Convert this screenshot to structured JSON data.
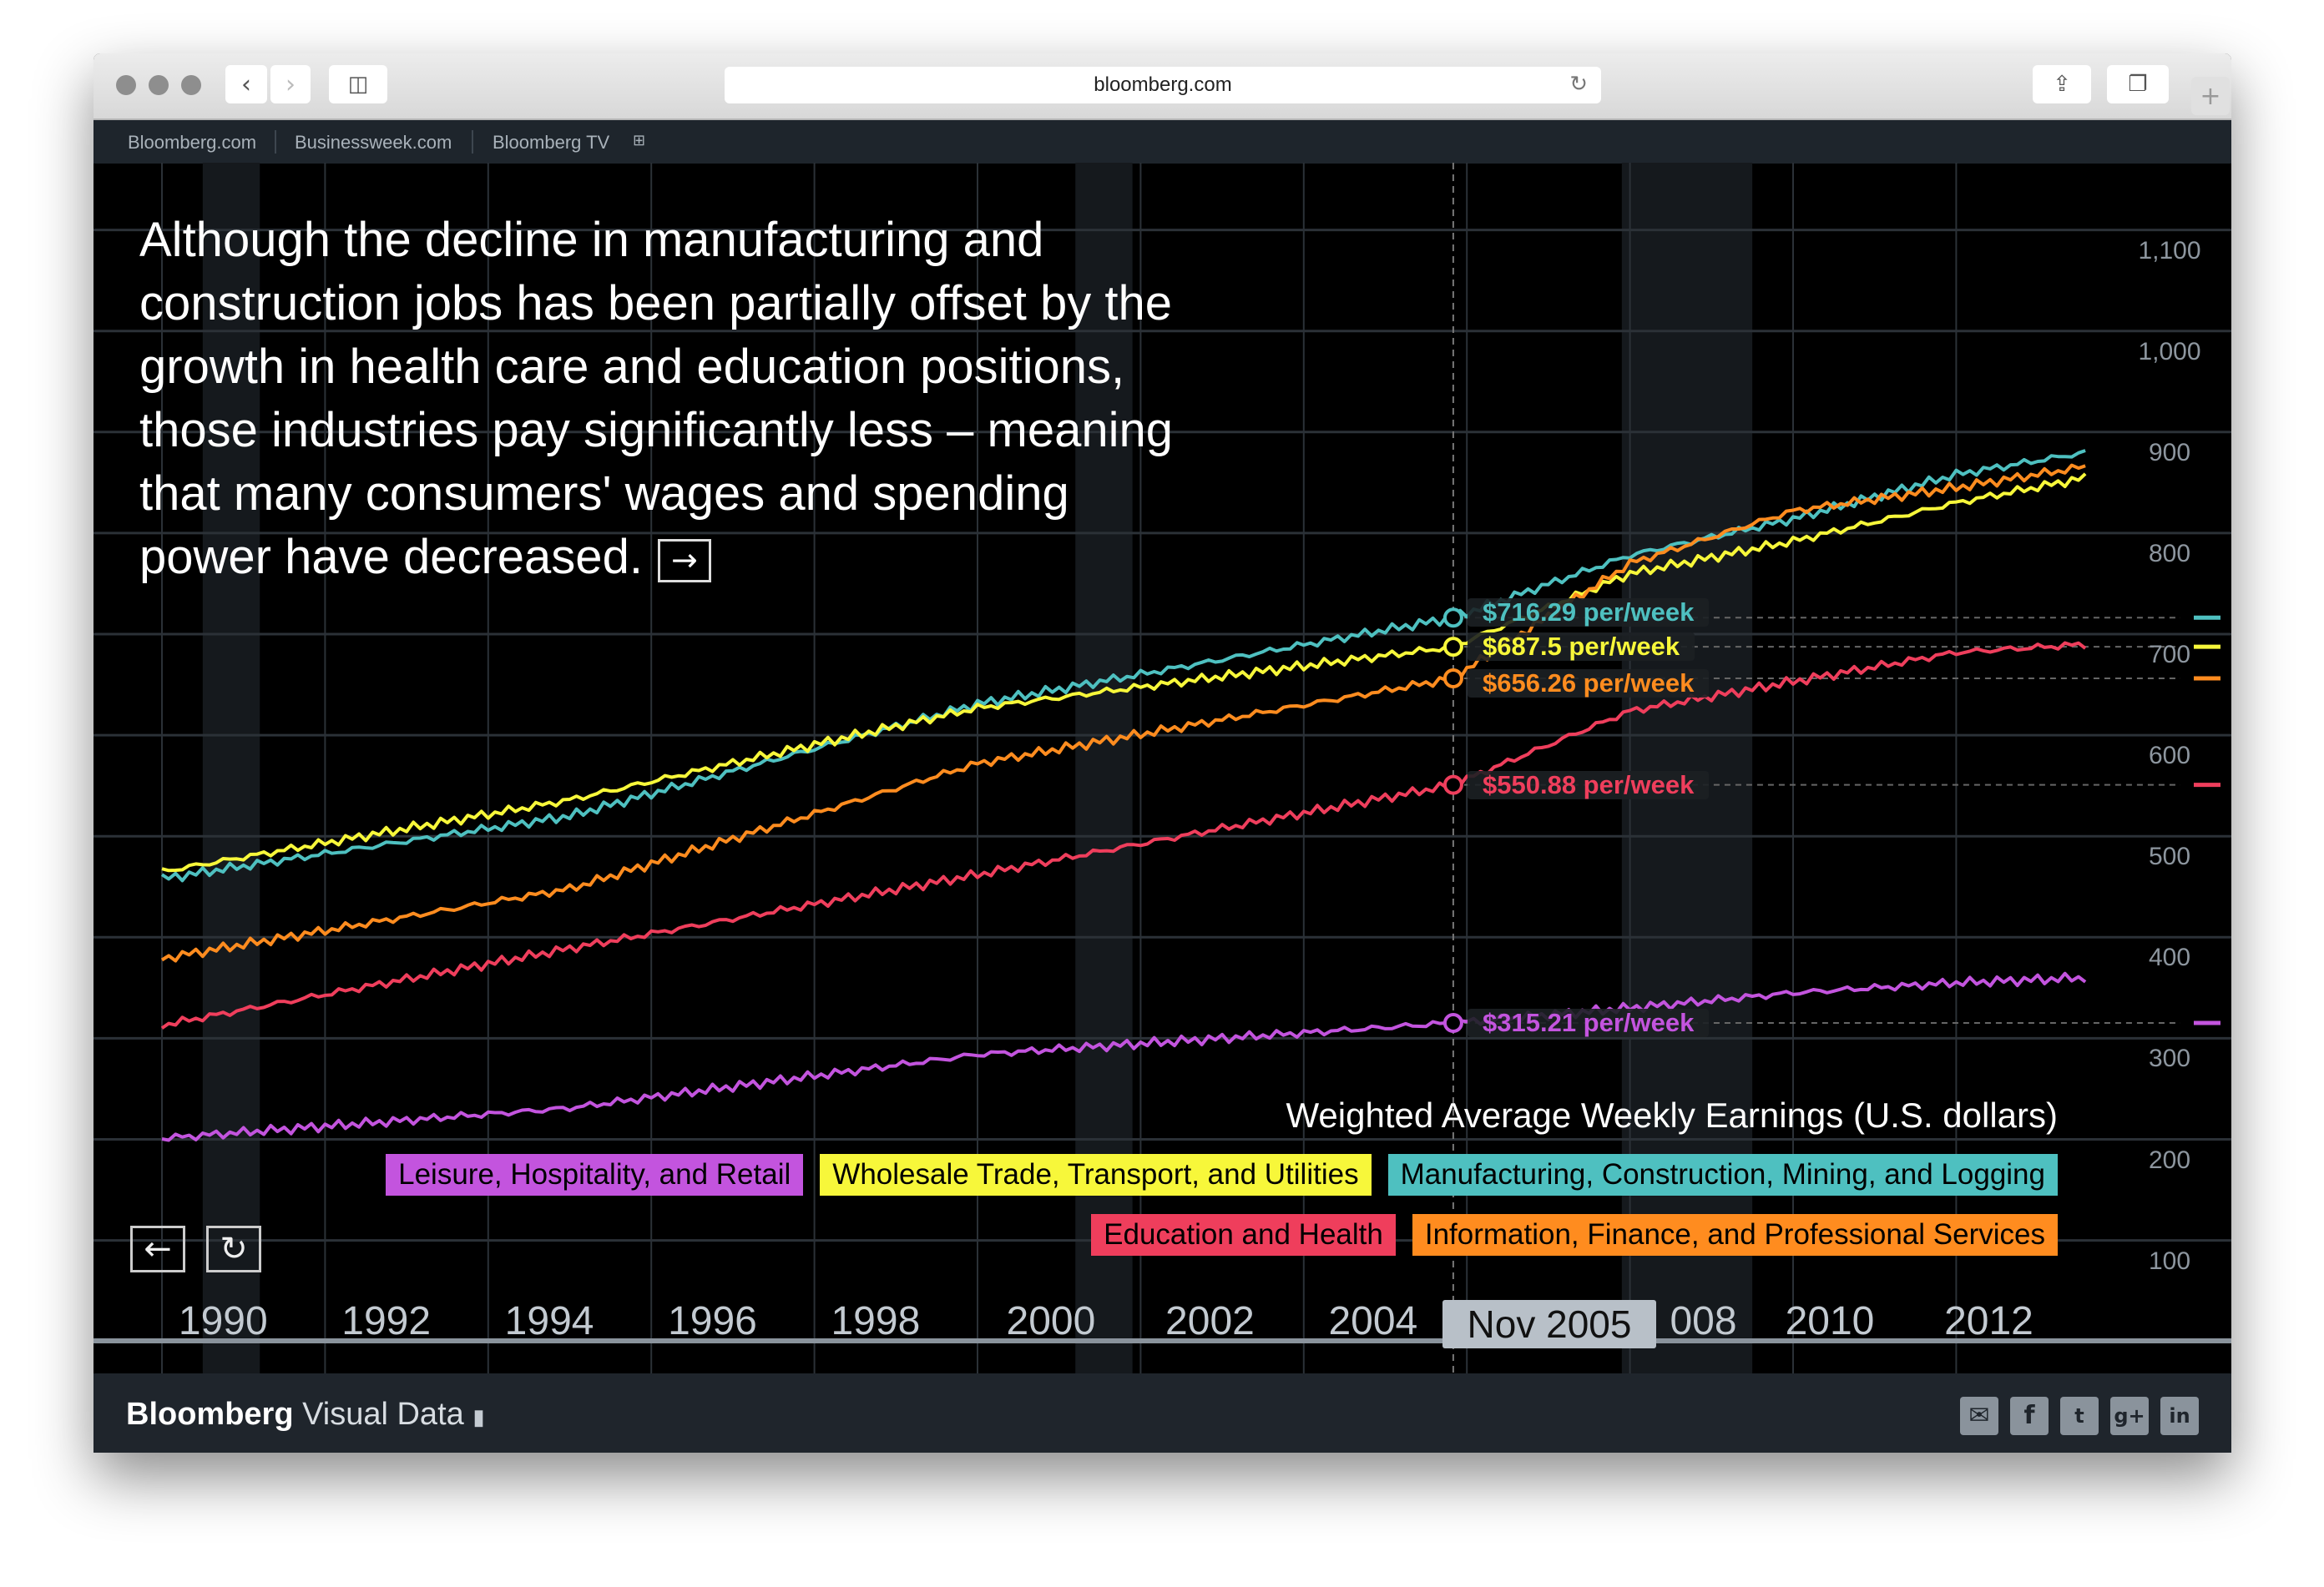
{
  "browser": {
    "url": "bloomberg.com",
    "icons": [
      "back-icon",
      "forward-icon",
      "sidebar-icon",
      "reload-icon",
      "share-icon",
      "tabs-icon",
      "new-tab-icon"
    ]
  },
  "nav": {
    "links": [
      "Bloomberg.com",
      "Businessweek.com",
      "Bloomberg TV"
    ]
  },
  "headline": {
    "lines": [
      "Although the decline in manufacturing and",
      "construction jobs has been partially offset by the",
      "growth in health care and education positions,",
      "those industries pay significantly less – meaning",
      "that many consumers' wages and spending",
      "power have decreased."
    ]
  },
  "chart_data": {
    "type": "line",
    "title": "Weighted Average Weekly Earnings (U.S. dollars)",
    "xlabel": "",
    "ylabel": "",
    "ylim": [
      100,
      1100
    ],
    "xlim": [
      1990,
      2014
    ],
    "y_ticks": [
      "100",
      "200",
      "300",
      "400",
      "500",
      "600",
      "700",
      "800",
      "900",
      "1,000",
      "1,100"
    ],
    "x_ticks": [
      "1990",
      "1992",
      "1994",
      "1996",
      "1998",
      "2000",
      "2002",
      "2004",
      "Nov 2005",
      "2008",
      "2010",
      "2012"
    ],
    "grid": true,
    "legend_placement": "bottom-right",
    "shaded_periods": [
      [
        1990.5,
        1991.2
      ],
      [
        2001.2,
        2001.9
      ],
      [
        2007.9,
        2009.5
      ]
    ],
    "selected_date": "Nov 2005",
    "series": [
      {
        "name": "Manufacturing, Construction, Mining, and Logging",
        "color": "#4ec0c0",
        "x": [
          1990,
          1995,
          2000,
          2005.83,
          2008,
          2010,
          2012,
          2013.6
        ],
        "y": [
          458,
          520,
          631,
          716.29,
          778,
          814,
          858,
          880
        ],
        "selected_label": "$716.29 per/week"
      },
      {
        "name": "Wholesale Trade, Transport, and Utilities",
        "color": "#f7f73a",
        "x": [
          1990,
          1995,
          2000,
          2005.83,
          2008,
          2010,
          2012,
          2013.6
        ],
        "y": [
          465,
          536,
          627,
          687.5,
          760,
          792,
          830,
          855
        ],
        "selected_label": "$687.5 per/week"
      },
      {
        "name": "Information, Finance, and Professional Services",
        "color": "#ff8c1f",
        "x": [
          1990,
          1995,
          2000,
          2005.83,
          2008,
          2010,
          2012,
          2013.6
        ],
        "y": [
          379,
          448,
          572,
          656.26,
          770,
          822,
          845,
          866
        ],
        "selected_label": "$656.26 per/week"
      },
      {
        "name": "Education and Health",
        "color": "#ef3e5c",
        "x": [
          1990,
          1995,
          2000,
          2005.83,
          2008,
          2010,
          2012,
          2013.6
        ],
        "y": [
          313,
          389,
          462,
          550.88,
          624,
          653,
          682,
          690
        ],
        "selected_label": "$550.88 per/week"
      },
      {
        "name": "Leisure, Hospitality, and Retail",
        "color": "#c354de",
        "x": [
          1990,
          1995,
          2000,
          2005.83,
          2008,
          2010,
          2012,
          2013.6
        ],
        "y": [
          201,
          231,
          284,
          315.21,
          330,
          345,
          355,
          360
        ],
        "selected_label": "$315.21 per/week"
      }
    ]
  },
  "legend": {
    "row1": [
      {
        "label": "Leisure, Hospitality, and Retail",
        "color": "#c354de"
      },
      {
        "label": "Wholesale Trade, Transport, and Utilities",
        "color": "#f7f73a"
      },
      {
        "label": "Manufacturing, Construction, Mining, and Logging",
        "color": "#4ec0c0"
      }
    ],
    "row2": [
      {
        "label": "Education and Health",
        "color": "#ef3e5c"
      },
      {
        "label": "Information, Finance, and Professional Services",
        "color": "#ff8c1f"
      }
    ]
  },
  "footer": {
    "brand_bold": "Bloomberg",
    "brand_light": "Visual Data",
    "social": [
      "email-icon",
      "facebook-icon",
      "twitter-icon",
      "google-plus-icon",
      "linkedin-icon"
    ]
  }
}
